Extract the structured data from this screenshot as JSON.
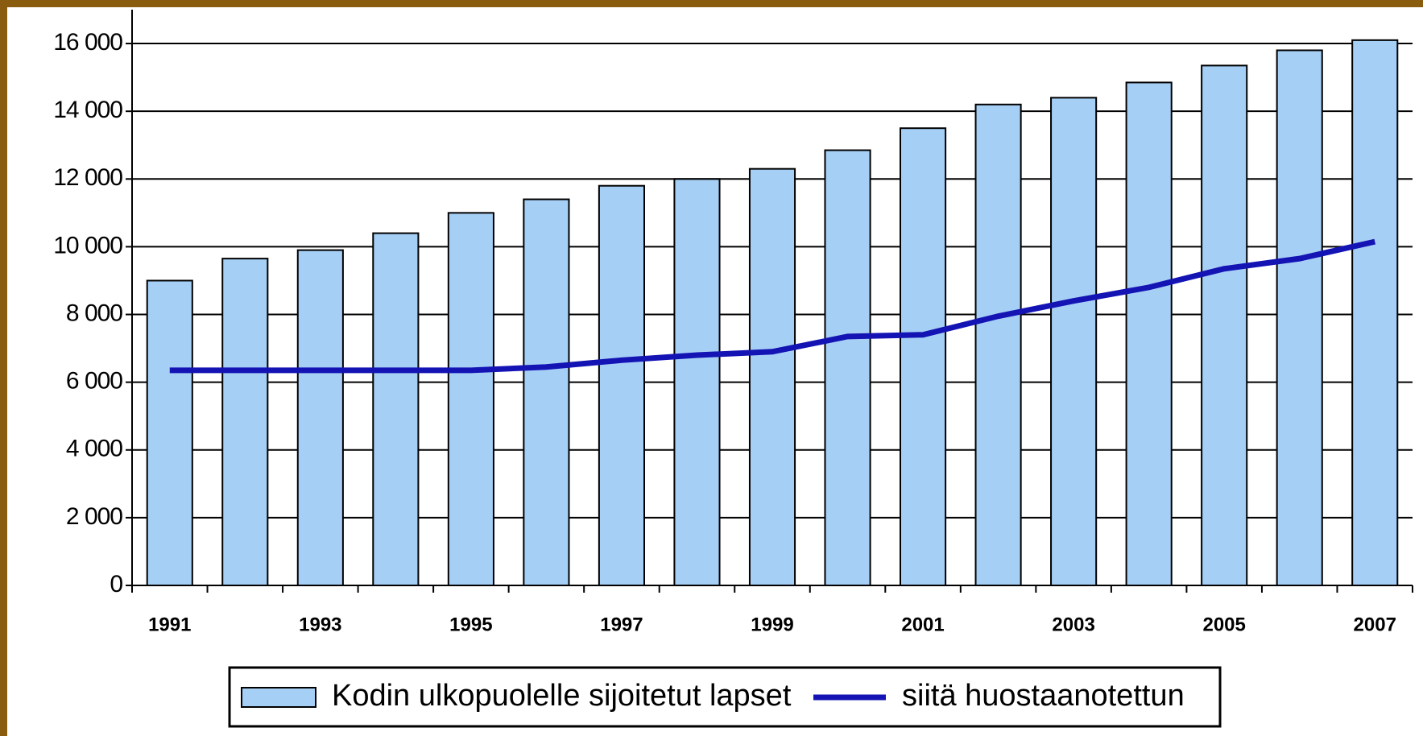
{
  "chart_data": {
    "type": "bar",
    "categories": [
      "1991",
      null,
      "1993",
      null,
      "1995",
      null,
      "1997",
      null,
      "1999",
      null,
      "2001",
      null,
      "2003",
      null,
      "2005",
      null,
      "2007"
    ],
    "series": [
      {
        "name": "Kodin ulkopuolelle sijoitetut lapset",
        "type": "bar",
        "color": "#a6cff5",
        "values": [
          9000,
          9650,
          9900,
          10400,
          11000,
          11400,
          11800,
          12000,
          12300,
          12850,
          13500,
          14200,
          14400,
          14850,
          15350,
          15800,
          16100
        ]
      },
      {
        "name": "siitä huostaanotettun",
        "type": "line",
        "color": "#1414b4",
        "values": [
          6350,
          6350,
          6350,
          6350,
          6350,
          6450,
          6650,
          6800,
          6900,
          7350,
          7400,
          7950,
          8400,
          8800,
          9350,
          9650,
          10150
        ]
      }
    ],
    "ylim": [
      0,
      17000
    ],
    "yticks": [
      0,
      {
        "value": 2000,
        "label": "2 000"
      },
      {
        "value": 4000,
        "label": "4 000"
      },
      {
        "value": 6000,
        "label": "6 000"
      },
      {
        "value": 8000,
        "label": "8 000"
      },
      {
        "value": 10000,
        "label": "10 000"
      },
      {
        "value": 12000,
        "label": "12 000"
      },
      {
        "value": 14000,
        "label": "14 000"
      },
      {
        "value": 16000,
        "label": "16 000"
      }
    ],
    "grid": true
  }
}
